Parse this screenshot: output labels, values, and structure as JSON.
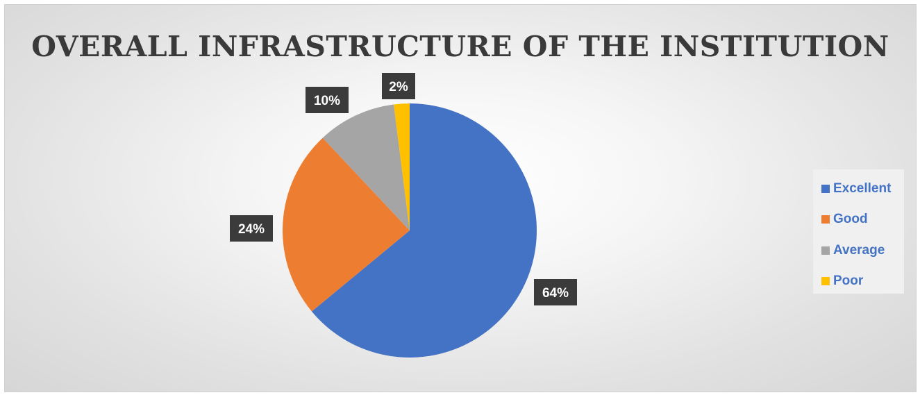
{
  "chart_data": {
    "type": "pie",
    "title": "OVERALL INFRASTRUCTURE OF THE INSTITUTION",
    "categories": [
      "Excellent",
      "Good",
      "Average",
      "Poor"
    ],
    "values": [
      64,
      24,
      10,
      2
    ],
    "data_labels": [
      "64%",
      "24%",
      "10%",
      "2%"
    ],
    "colors": [
      "#4472c4",
      "#ed7d31",
      "#a5a5a5",
      "#ffc000"
    ],
    "legend_position": "right"
  }
}
